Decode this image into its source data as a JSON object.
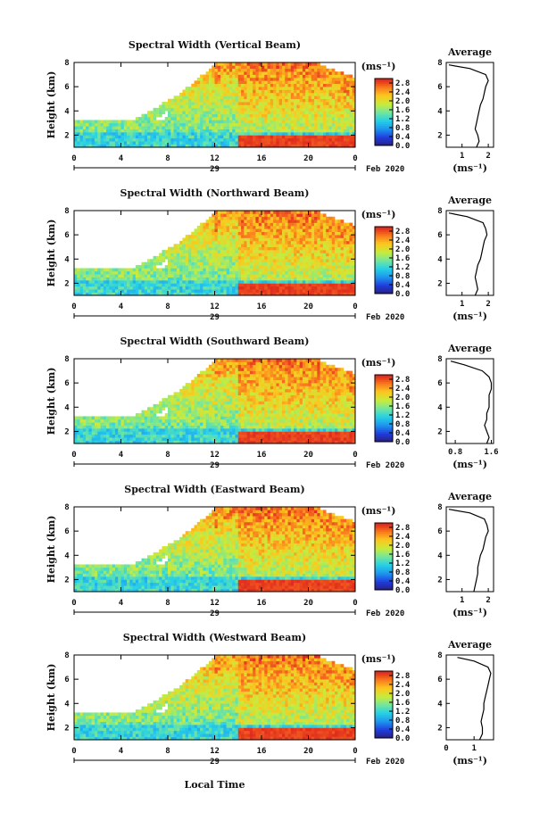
{
  "chart_data": [
    {
      "type": "heatmap",
      "title": "Spectral Width (Vertical Beam)",
      "ylabel": "Height (km)",
      "yticks": [
        "2",
        "4",
        "6",
        "8"
      ],
      "ylim": [
        1,
        8
      ],
      "xticks": [
        "0",
        "4",
        "8",
        "12",
        "16",
        "20",
        "0"
      ],
      "xlim": [
        0,
        24
      ],
      "day_label": "29",
      "month_label": "Feb 2020",
      "colorbar": {
        "unit": "(ms⁻¹)",
        "ticks": [
          "2.8",
          "2.4",
          "2.0",
          "1.6",
          "1.2",
          "0.8",
          "0.4",
          "0.0"
        ],
        "range": [
          0,
          3.0
        ]
      },
      "profile": {
        "title": "Average",
        "xlabel": "(ms⁻¹)",
        "xticks": [
          "1",
          "2"
        ],
        "xlim": [
          0.4,
          2.2
        ],
        "ylim": [
          1,
          8
        ],
        "yticks": [
          "2",
          "4",
          "6",
          "8"
        ],
        "heights": [
          1.0,
          1.5,
          2.0,
          2.5,
          3.0,
          3.5,
          4.0,
          4.5,
          5.0,
          5.5,
          6.0,
          6.5,
          7.0,
          7.5,
          7.8
        ],
        "values": [
          1.55,
          1.65,
          1.6,
          1.5,
          1.55,
          1.6,
          1.65,
          1.7,
          1.8,
          1.85,
          1.9,
          2.0,
          1.9,
          1.3,
          0.5
        ]
      }
    },
    {
      "type": "heatmap",
      "title": "Spectral Width (Northward Beam)",
      "ylabel": "Height (km)",
      "yticks": [
        "2",
        "4",
        "6",
        "8"
      ],
      "ylim": [
        1,
        8
      ],
      "xticks": [
        "0",
        "4",
        "8",
        "12",
        "16",
        "20",
        "0"
      ],
      "xlim": [
        0,
        24
      ],
      "day_label": "29",
      "month_label": "Feb 2020",
      "colorbar": {
        "unit": "(ms⁻¹)",
        "ticks": [
          "2.8",
          "2.4",
          "2.0",
          "1.6",
          "1.2",
          "0.8",
          "0.4",
          "0.0"
        ],
        "range": [
          0,
          3.0
        ]
      },
      "profile": {
        "title": "Average",
        "xlabel": "(ms⁻¹)",
        "xticks": [
          "1",
          "2"
        ],
        "xlim": [
          0.4,
          2.2
        ],
        "ylim": [
          1,
          8
        ],
        "yticks": [
          "2",
          "4",
          "6",
          "8"
        ],
        "heights": [
          1.0,
          1.5,
          2.0,
          2.5,
          3.0,
          3.5,
          4.0,
          4.5,
          5.0,
          5.5,
          6.0,
          6.5,
          7.0,
          7.5,
          7.8
        ],
        "values": [
          1.5,
          1.6,
          1.55,
          1.5,
          1.55,
          1.6,
          1.7,
          1.75,
          1.8,
          1.85,
          1.95,
          1.9,
          1.8,
          1.2,
          0.5
        ]
      }
    },
    {
      "type": "heatmap",
      "title": "Spectral Width (Southward Beam)",
      "ylabel": "Height (km)",
      "yticks": [
        "2",
        "4",
        "6",
        "8"
      ],
      "ylim": [
        1,
        8
      ],
      "xticks": [
        "0",
        "4",
        "8",
        "12",
        "16",
        "20",
        "0"
      ],
      "xlim": [
        0,
        24
      ],
      "day_label": "29",
      "month_label": "Feb 2020",
      "colorbar": {
        "unit": "(ms⁻¹)",
        "ticks": [
          "2.8",
          "2.4",
          "2.0",
          "1.6",
          "1.2",
          "0.8",
          "0.4",
          "0.0"
        ],
        "range": [
          0,
          3.0
        ]
      },
      "profile": {
        "title": "Average",
        "xlabel": "(ms⁻¹)",
        "xticks": [
          "0.8",
          "1.6"
        ],
        "xlim": [
          0.6,
          1.65
        ],
        "ylim": [
          1,
          8
        ],
        "yticks": [
          "2",
          "4",
          "6",
          "8"
        ],
        "heights": [
          1.0,
          1.5,
          2.0,
          2.5,
          3.0,
          3.5,
          4.0,
          4.5,
          5.0,
          5.5,
          6.0,
          6.5,
          7.0,
          7.5,
          7.8
        ],
        "values": [
          1.5,
          1.55,
          1.5,
          1.45,
          1.5,
          1.5,
          1.55,
          1.55,
          1.55,
          1.6,
          1.6,
          1.55,
          1.4,
          1.0,
          0.7
        ]
      }
    },
    {
      "type": "heatmap",
      "title": "Spectral Width (Eastward Beam)",
      "ylabel": "Height (km)",
      "yticks": [
        "2",
        "4",
        "6",
        "8"
      ],
      "ylim": [
        1,
        8
      ],
      "xticks": [
        "0",
        "4",
        "8",
        "12",
        "16",
        "20",
        "0"
      ],
      "xlim": [
        0,
        24
      ],
      "day_label": "29",
      "month_label": "Feb 2020",
      "colorbar": {
        "unit": "(ms⁻¹)",
        "ticks": [
          "2.8",
          "2.4",
          "2.0",
          "1.6",
          "1.2",
          "0.8",
          "0.4",
          "0.0"
        ],
        "range": [
          0,
          3.0
        ]
      },
      "profile": {
        "title": "Average",
        "xlabel": "(ms⁻¹)",
        "xticks": [
          "1",
          "2"
        ],
        "xlim": [
          0.4,
          2.2
        ],
        "ylim": [
          1,
          8
        ],
        "yticks": [
          "2",
          "4",
          "6",
          "8"
        ],
        "heights": [
          1.0,
          1.5,
          2.0,
          2.5,
          3.0,
          3.5,
          4.0,
          4.5,
          5.0,
          5.5,
          6.0,
          6.5,
          7.0,
          7.5,
          7.8
        ],
        "values": [
          1.45,
          1.5,
          1.55,
          1.6,
          1.6,
          1.65,
          1.7,
          1.8,
          1.85,
          1.9,
          2.0,
          1.95,
          1.85,
          1.3,
          0.5
        ]
      }
    },
    {
      "type": "heatmap",
      "title": "Spectral Width (Westward Beam)",
      "ylabel": "Height (km)",
      "yticks": [
        "2",
        "4",
        "6",
        "8"
      ],
      "ylim": [
        1,
        8
      ],
      "xticks": [
        "0",
        "4",
        "8",
        "12",
        "16",
        "20",
        "0"
      ],
      "xlim": [
        0,
        24
      ],
      "day_label": "29",
      "month_label": "Feb 2020",
      "xlabel": "Local Time",
      "colorbar": {
        "unit": "(ms⁻¹)",
        "ticks": [
          "2.8",
          "2.4",
          "2.0",
          "1.6",
          "1.2",
          "0.8",
          "0.4",
          "0.0"
        ],
        "range": [
          0,
          3.0
        ]
      },
      "profile": {
        "title": "Average",
        "xlabel": "(ms⁻¹)",
        "xticks": [
          "0",
          "1"
        ],
        "xlim": [
          0,
          1.7
        ],
        "ylim": [
          1,
          8
        ],
        "yticks": [
          "2",
          "4",
          "6",
          "8"
        ],
        "heights": [
          1.0,
          1.5,
          2.0,
          2.5,
          3.0,
          3.5,
          4.0,
          4.5,
          5.0,
          5.5,
          6.0,
          6.5,
          7.0,
          7.5,
          7.8
        ],
        "values": [
          1.2,
          1.3,
          1.3,
          1.25,
          1.3,
          1.35,
          1.35,
          1.4,
          1.45,
          1.5,
          1.55,
          1.6,
          1.5,
          1.0,
          0.4
        ]
      }
    }
  ]
}
